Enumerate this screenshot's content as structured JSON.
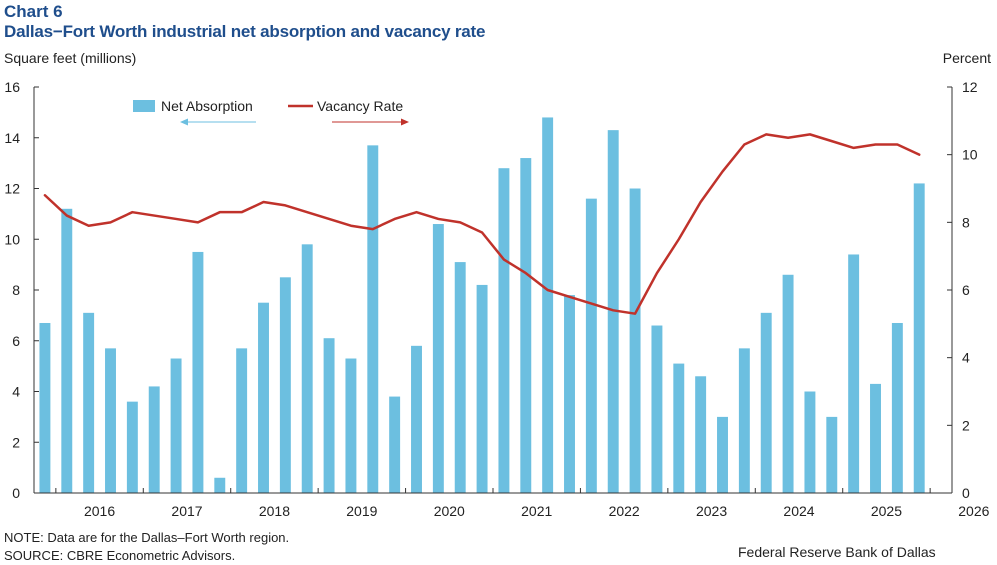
{
  "header": {
    "label": "Chart 6",
    "title": "Dallas−Fort Worth industrial net absorption and vacancy rate"
  },
  "footer": {
    "note": "NOTE: Data are for the Dallas–Fort Worth region.",
    "source": "SOURCE: CBRE Econometric Advisors.",
    "credit": "Federal Reserve Bank of Dallas"
  },
  "colors": {
    "bar": "#6cbfe0",
    "line": "#c0322b",
    "axis": "#333333",
    "title": "#1f4e8c"
  },
  "chart_data": {
    "type": "bar+line",
    "title": "Dallas−Fort Worth industrial net absorption and vacancy rate",
    "ylabel_left": "Square feet (millions)",
    "ylabel_right": "Percent",
    "ylim_left": [
      0,
      16
    ],
    "ylim_right": [
      0,
      12
    ],
    "yticks_left": [
      "0",
      "2",
      "4",
      "6",
      "8",
      "10",
      "12",
      "14",
      "16"
    ],
    "yticks_right": [
      "0",
      "2",
      "4",
      "6",
      "8",
      "10",
      "12"
    ],
    "xticks": [
      "2016",
      "2017",
      "2018",
      "2019",
      "2020",
      "2021",
      "2022",
      "2023",
      "2024",
      "2025",
      "2026"
    ],
    "grid": false,
    "legend_position": "top-left",
    "legend": {
      "bar_label": "Net Absorption",
      "line_label": "Vacancy Rate",
      "bar_axis": "left",
      "line_axis": "right"
    },
    "quarters": [
      "2015Q4",
      "2016Q1",
      "2016Q2",
      "2016Q3",
      "2016Q4",
      "2017Q1",
      "2017Q2",
      "2017Q3",
      "2017Q4",
      "2018Q1",
      "2018Q2",
      "2018Q3",
      "2018Q4",
      "2019Q1",
      "2019Q2",
      "2019Q3",
      "2019Q4",
      "2020Q1",
      "2020Q2",
      "2020Q3",
      "2020Q4",
      "2021Q1",
      "2021Q2",
      "2021Q3",
      "2021Q4",
      "2022Q1",
      "2022Q2",
      "2022Q3",
      "2022Q4",
      "2023Q1",
      "2023Q2",
      "2023Q3",
      "2023Q4",
      "2024Q1",
      "2024Q2",
      "2024Q3",
      "2024Q4",
      "2025Q1",
      "2025Q2",
      "2025Q3",
      "2025Q4",
      "2026Q1"
    ],
    "series": [
      {
        "name": "Net Absorption",
        "axis": "left",
        "type": "bar",
        "values": [
          6.7,
          11.2,
          7.1,
          5.7,
          3.6,
          4.2,
          5.3,
          9.5,
          0.6,
          5.7,
          7.5,
          8.5,
          9.8,
          6.1,
          5.3,
          13.7,
          3.8,
          5.8,
          10.6,
          9.1,
          8.2,
          12.8,
          13.2,
          14.8,
          7.8,
          11.6,
          14.3,
          12.0,
          6.6,
          5.1,
          4.6,
          3.0,
          5.7,
          7.1,
          8.6,
          4.0,
          3.0,
          9.4,
          4.3,
          6.7,
          12.2,
          null
        ]
      },
      {
        "name": "Vacancy Rate",
        "axis": "right",
        "type": "line",
        "values": [
          8.8,
          8.2,
          7.9,
          8.0,
          8.3,
          8.2,
          8.1,
          8.0,
          8.3,
          8.3,
          8.6,
          8.5,
          8.3,
          8.1,
          7.9,
          7.8,
          8.1,
          8.3,
          8.1,
          8.0,
          7.7,
          6.9,
          6.5,
          6.0,
          5.8,
          5.6,
          5.4,
          5.3,
          6.5,
          7.5,
          8.6,
          9.5,
          10.3,
          10.6,
          10.5,
          10.6,
          10.4,
          10.2,
          10.3,
          10.3,
          10.0,
          null
        ]
      }
    ]
  }
}
